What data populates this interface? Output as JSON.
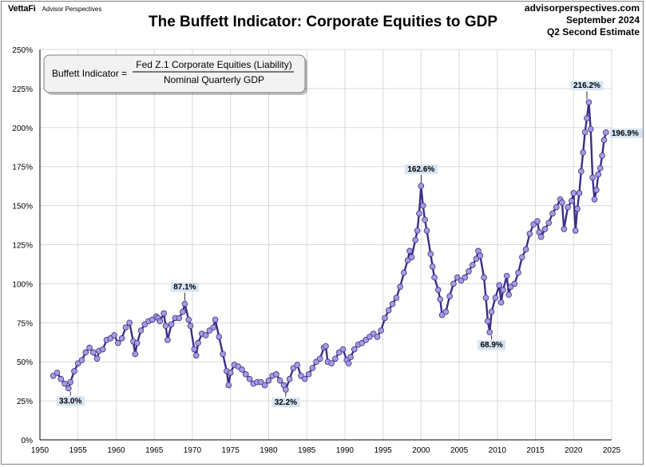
{
  "header": {
    "brand": "VettaFi",
    "brand_sub": "Advisor Perspectives",
    "title": "The Buffett Indicator: Corporate Equities to GDP",
    "source_line1": "advisorperspectives.com",
    "source_line2": "September 2024",
    "source_line3": "Q2 Second Estimate"
  },
  "formula": {
    "lhs": "Buffett Indicator =",
    "numerator": "Fed Z.1 Corporate Equities (Liability)",
    "denominator": "Nominal Quarterly GDP"
  },
  "colors": {
    "line": "#3b2f86",
    "marker_fill": "#a99ae0",
    "marker_stroke": "#3b2f86",
    "grid": "#d9d9d9",
    "label_bg": "#d6e4f2"
  },
  "chart_data": {
    "type": "line",
    "title": "The Buffett Indicator: Corporate Equities to GDP",
    "xlim": [
      1950,
      2025
    ],
    "ylim": [
      0,
      250
    ],
    "x_ticks": [
      1950,
      1955,
      1960,
      1965,
      1970,
      1975,
      1980,
      1985,
      1990,
      1995,
      2000,
      2005,
      2010,
      2015,
      2020,
      2025
    ],
    "y_ticks": [
      0,
      25,
      50,
      75,
      100,
      125,
      150,
      175,
      200,
      225,
      250
    ],
    "y_tick_labels": [
      "0%",
      "25%",
      "50%",
      "75%",
      "100%",
      "125%",
      "150%",
      "175%",
      "200%",
      "225%",
      "250%"
    ],
    "grid": true,
    "series": [
      {
        "x": [
          1951.75,
          1952.25,
          1952.75,
          1953.25,
          1953.75,
          1954.0,
          1954.5,
          1955.0,
          1955.5,
          1956.0,
          1956.5,
          1957.0,
          1957.5,
          1957.75,
          1958.25,
          1958.75,
          1959.25,
          1959.75,
          1960.25,
          1960.75,
          1961.25,
          1961.75,
          1962.25,
          1962.5,
          1962.75,
          1963.25,
          1963.75,
          1964.25,
          1964.75,
          1965.25,
          1965.5,
          1965.75,
          1966.25,
          1966.5,
          1966.75,
          1967.25,
          1967.75,
          1968.25,
          1968.75,
          1969.0,
          1969.5,
          1969.75,
          1970.25,
          1970.5,
          1970.75,
          1971.25,
          1971.75,
          1972.25,
          1972.75,
          1973.0,
          1973.5,
          1974.0,
          1974.5,
          1974.75,
          1975.0,
          1975.5,
          1976.0,
          1976.5,
          1977.0,
          1977.5,
          1978.0,
          1978.5,
          1979.0,
          1979.5,
          1980.0,
          1980.5,
          1981.0,
          1981.5,
          1982.0,
          1982.25,
          1982.75,
          1983.25,
          1983.75,
          1984.25,
          1984.75,
          1985.25,
          1985.75,
          1986.25,
          1986.75,
          1987.25,
          1987.5,
          1987.75,
          1988.25,
          1988.75,
          1989.25,
          1989.75,
          1990.25,
          1990.5,
          1990.75,
          1991.25,
          1991.75,
          1992.25,
          1992.75,
          1993.25,
          1993.75,
          1994.25,
          1994.75,
          1995.25,
          1995.75,
          1996.25,
          1996.75,
          1997.25,
          1997.75,
          1998.25,
          1998.5,
          1998.75,
          1999.25,
          1999.5,
          1999.75,
          2000.0,
          2000.25,
          2000.5,
          2000.75,
          2001.25,
          2001.5,
          2001.75,
          2002.25,
          2002.5,
          2002.75,
          2003.25,
          2003.75,
          2004.25,
          2004.75,
          2005.25,
          2005.75,
          2006.25,
          2006.75,
          2007.25,
          2007.5,
          2007.75,
          2008.25,
          2008.5,
          2008.75,
          2009.0,
          2009.25,
          2009.75,
          2010.25,
          2010.5,
          2010.75,
          2011.25,
          2011.5,
          2011.75,
          2012.25,
          2012.75,
          2013.25,
          2013.75,
          2014.25,
          2014.75,
          2015.25,
          2015.5,
          2015.75,
          2016.25,
          2016.75,
          2017.25,
          2017.75,
          2018.25,
          2018.5,
          2018.75,
          2019.25,
          2019.75,
          2020.0,
          2020.25,
          2020.5,
          2020.75,
          2021.0,
          2021.25,
          2021.5,
          2021.75,
          2022.0,
          2022.25,
          2022.5,
          2022.75,
          2023.0,
          2023.25,
          2023.5,
          2023.75,
          2024.0,
          2024.25
        ],
        "y": [
          41,
          43,
          39,
          36,
          33.0,
          37,
          44,
          49,
          51,
          56,
          59,
          56,
          52,
          57,
          58,
          64,
          65,
          67,
          62,
          65,
          72,
          75,
          63,
          55,
          62,
          70,
          74,
          76,
          77,
          79,
          78,
          76,
          81,
          73,
          64,
          74,
          78,
          78,
          82,
          87.1,
          77,
          73,
          58,
          54,
          62,
          68,
          67,
          70,
          72,
          77,
          66,
          55,
          44,
          35,
          43,
          48,
          47,
          45,
          42,
          39,
          36,
          37,
          37,
          35,
          38,
          41,
          42,
          38,
          35,
          32.2,
          39,
          46,
          48,
          41,
          39,
          42,
          46,
          50,
          52,
          59,
          60,
          50,
          49,
          52,
          56,
          58,
          51,
          49,
          53,
          58,
          61,
          62,
          64,
          66,
          68,
          66,
          70,
          78,
          83,
          87,
          91,
          98,
          107,
          115,
          121,
          117,
          128,
          134,
          145,
          162.6,
          150,
          141,
          134,
          119,
          111,
          104,
          96,
          90,
          80,
          82,
          92,
          100,
          104,
          102,
          104,
          108,
          112,
          116,
          121,
          118,
          104,
          91,
          76,
          68.9,
          82,
          91,
          99,
          88,
          96,
          105,
          93,
          98,
          100,
          107,
          117,
          122,
          132,
          138,
          140,
          133,
          130,
          135,
          139,
          145,
          149,
          154,
          152,
          135,
          149,
          153,
          158,
          134,
          148,
          158,
          172,
          184,
          197,
          206,
          216.2,
          199,
          168,
          154,
          160,
          170,
          174,
          182,
          192,
          196.9
        ]
      }
    ],
    "annotations": [
      {
        "x": 1954.0,
        "y": 33.0,
        "text": "33.0%",
        "pos": "below"
      },
      {
        "x": 1969.0,
        "y": 87.1,
        "text": "87.1%",
        "pos": "above"
      },
      {
        "x": 1982.25,
        "y": 32.2,
        "text": "32.2%",
        "pos": "below"
      },
      {
        "x": 2000.0,
        "y": 162.6,
        "text": "162.6%",
        "pos": "above"
      },
      {
        "x": 2009.25,
        "y": 68.9,
        "text": "68.9%",
        "pos": "below"
      },
      {
        "x": 2021.75,
        "y": 216.2,
        "text": "216.2%",
        "pos": "above"
      },
      {
        "x": 2024.25,
        "y": 196.9,
        "text": "196.9%",
        "pos": "right"
      }
    ]
  }
}
